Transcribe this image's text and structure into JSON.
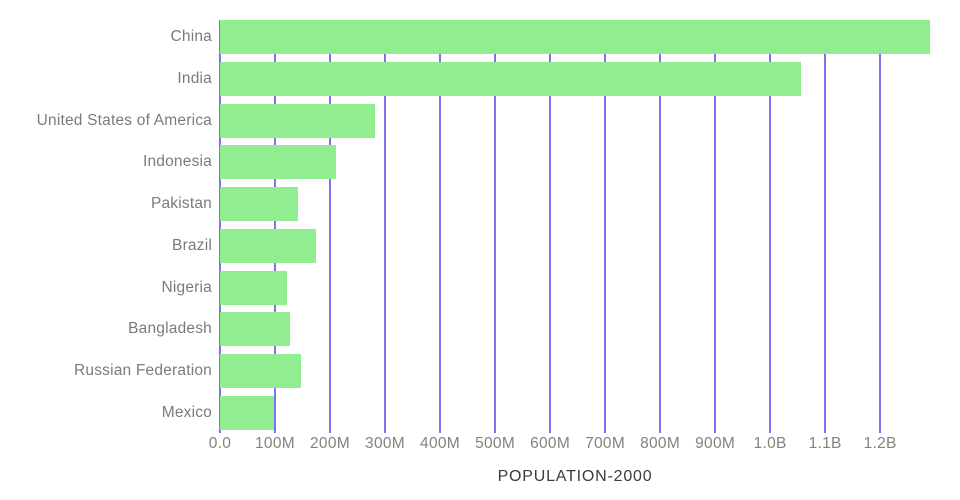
{
  "chart_data": {
    "type": "bar",
    "orientation": "horizontal",
    "title": "",
    "xlabel": "POPULATION-2000",
    "ylabel": "",
    "categories": [
      "China",
      "India",
      "United States of America",
      "Indonesia",
      "Pakistan",
      "Brazil",
      "Nigeria",
      "Bangladesh",
      "Russian Federation",
      "Mexico"
    ],
    "values_millions": [
      1290.6,
      1056.6,
      281.7,
      211.5,
      142.3,
      174.8,
      122.3,
      127.7,
      146.4,
      98.9
    ],
    "x_tick_labels": [
      "0.0",
      "100M",
      "200M",
      "300M",
      "400M",
      "500M",
      "600M",
      "700M",
      "800M",
      "900M",
      "1.0B",
      "1.1B",
      "1.2B"
    ],
    "x_tick_values_millions": [
      0,
      100,
      200,
      300,
      400,
      500,
      600,
      700,
      800,
      900,
      1000,
      1100,
      1200
    ],
    "xlim_millions": [
      0,
      1290.6
    ],
    "grid": "vertical",
    "legend": "none",
    "colors": {
      "bar": "#90EE90",
      "gridline": "#7B73F0",
      "category_label_text": "#7B7B7B",
      "tick_label_text": "#828282",
      "axis_title_text": "#3B3B3B",
      "background": "#FFFFFF"
    }
  }
}
